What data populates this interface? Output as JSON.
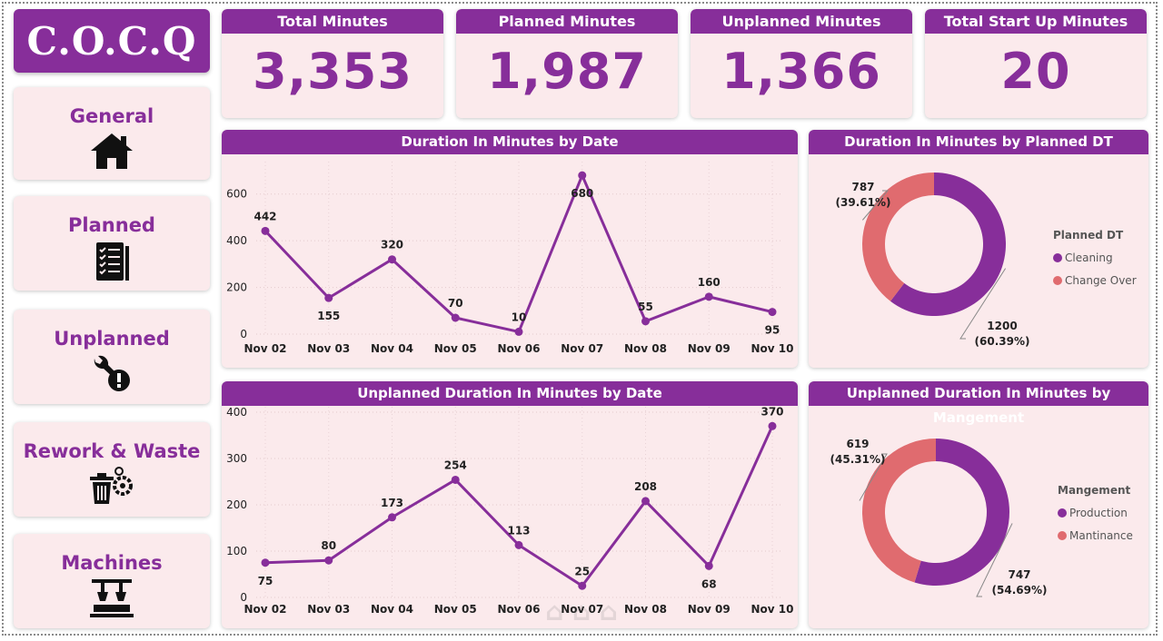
{
  "logo": "C.O.C.Q",
  "nav": [
    {
      "label": "General",
      "icon": "home-icon"
    },
    {
      "label": "Planned",
      "icon": "checklist-icon"
    },
    {
      "label": "Unplanned",
      "icon": "wrench-alert-icon"
    },
    {
      "label": "Rework & Waste",
      "icon": "trash-gear-icon"
    },
    {
      "label": "Machines",
      "icon": "machine-icon"
    }
  ],
  "kpis": [
    {
      "title": "Total Minutes",
      "value": "3,353"
    },
    {
      "title": "Planned Minutes",
      "value": "1,987"
    },
    {
      "title": "Unplanned Minutes",
      "value": "1,366"
    },
    {
      "title": "Total Start Up Minutes",
      "value": "20"
    }
  ],
  "colors": {
    "accent": "#872e9a",
    "panel": "#fbeaec",
    "salmon": "#e06b6f",
    "line": "#872e9a"
  },
  "chart_data": [
    {
      "type": "line",
      "title": "Duration In Minutes by Date",
      "categories": [
        "Nov 02",
        "Nov 03",
        "Nov 04",
        "Nov 05",
        "Nov 06",
        "Nov 07",
        "Nov 08",
        "Nov 09",
        "Nov 10"
      ],
      "values": [
        442,
        155,
        320,
        70,
        10,
        680,
        55,
        160,
        95
      ],
      "label_pos": [
        "above",
        "below",
        "above",
        "above",
        "above",
        "below",
        "above",
        "above",
        "below"
      ],
      "ylim": [
        0,
        700
      ],
      "yticks": [
        0,
        200,
        400,
        600
      ]
    },
    {
      "type": "line",
      "title": "Unplanned Duration In Minutes by Date",
      "categories": [
        "Nov 02",
        "Nov 03",
        "Nov 04",
        "Nov 05",
        "Nov 06",
        "Nov 07",
        "Nov 08",
        "Nov 09",
        "Nov 10"
      ],
      "values": [
        75,
        80,
        173,
        254,
        113,
        25,
        208,
        68,
        370
      ],
      "label_pos": [
        "below",
        "above",
        "above",
        "above",
        "above",
        "above",
        "above",
        "below",
        "above"
      ],
      "ylim": [
        0,
        400
      ],
      "yticks": [
        0,
        100,
        200,
        300,
        400
      ]
    },
    {
      "type": "pie",
      "title": "Duration In Minutes by Planned DT",
      "legend_title": "Planned DT",
      "slices": [
        {
          "name": "Cleaning",
          "value": 1200,
          "label": "1200",
          "pct": "(60.39%)",
          "color": "#872e9a"
        },
        {
          "name": "Change Over",
          "value": 787,
          "label": "787",
          "pct": "(39.61%)",
          "color": "#e06b6f"
        }
      ]
    },
    {
      "type": "pie",
      "title": "Unplanned Duration In Minutes by Mangement",
      "legend_title": "Mangement",
      "slices": [
        {
          "name": "Production",
          "value": 747,
          "label": "747",
          "pct": "(54.69%)",
          "color": "#872e9a"
        },
        {
          "name": "Mantinance",
          "value": 619,
          "label": "619",
          "pct": "(45.31%)",
          "color": "#e06b6f"
        }
      ]
    }
  ]
}
